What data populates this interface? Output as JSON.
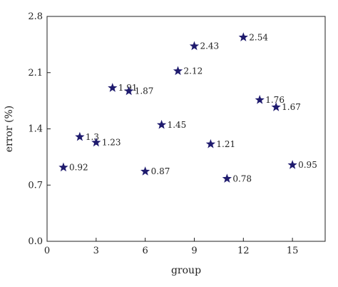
{
  "chart_data": {
    "type": "scatter",
    "xlabel": "group",
    "ylabel": "error (%)",
    "xlim": [
      0,
      17
    ],
    "ylim": [
      0,
      2.8
    ],
    "xticks": [
      0,
      3,
      6,
      9,
      12,
      15
    ],
    "xtick_labels": [
      "0",
      "3",
      "6",
      "9",
      "12",
      "15"
    ],
    "yticks": [
      0,
      0.7,
      1.4,
      2.1,
      2.8
    ],
    "ytick_labels": [
      "0.0",
      "0.7",
      "1.4",
      "2.1",
      "2.8"
    ],
    "grid": false,
    "marker": "star",
    "marker_color": "#1f1b6e",
    "points": [
      {
        "x": 1,
        "y": 0.92,
        "label": "0.92"
      },
      {
        "x": 2,
        "y": 1.3,
        "label": "1.3"
      },
      {
        "x": 3,
        "y": 1.23,
        "label": "1.23"
      },
      {
        "x": 4,
        "y": 1.91,
        "label": "1.91"
      },
      {
        "x": 5,
        "y": 1.87,
        "label": "1.87"
      },
      {
        "x": 6,
        "y": 0.87,
        "label": "0.87"
      },
      {
        "x": 7,
        "y": 1.45,
        "label": "1.45"
      },
      {
        "x": 8,
        "y": 2.12,
        "label": "2.12"
      },
      {
        "x": 9,
        "y": 2.43,
        "label": "2.43"
      },
      {
        "x": 10,
        "y": 1.21,
        "label": "1.21"
      },
      {
        "x": 11,
        "y": 0.78,
        "label": "0.78"
      },
      {
        "x": 12,
        "y": 2.54,
        "label": "2.54"
      },
      {
        "x": 13,
        "y": 1.76,
        "label": "1.76"
      },
      {
        "x": 14,
        "y": 1.67,
        "label": "1.67"
      },
      {
        "x": 15,
        "y": 0.95,
        "label": "0.95"
      }
    ]
  }
}
